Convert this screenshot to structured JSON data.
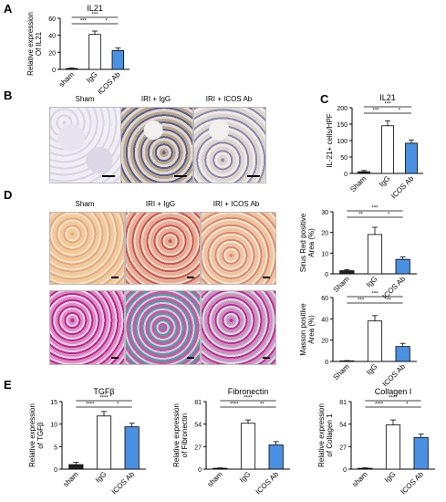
{
  "panels": [
    "A",
    "B",
    "C",
    "D",
    "E"
  ],
  "colors": {
    "ig": "#ffffff",
    "icos": "#4a90e2",
    "sham": "#222222"
  },
  "micrographs": {
    "b": {
      "labels": [
        "Sham",
        "IRI + IgG",
        "IRI + ICOS Ab"
      ]
    },
    "d": {
      "labels": [
        "Sham",
        "IRI + IgG",
        "IRI + ICOS Ab"
      ]
    }
  },
  "chart_data": [
    {
      "id": "a",
      "type": "bar",
      "title": "IL21",
      "categories": [
        "sham",
        "IgG",
        "ICOS Ab"
      ],
      "values": [
        1,
        41,
        22
      ],
      "errors": [
        0.5,
        4,
        3
      ],
      "ylabel": "Relative expression\nOf IL21",
      "ylim": [
        0,
        60
      ],
      "yticks": [
        "0",
        "20",
        "40",
        "60"
      ],
      "sig": [
        "***",
        "***",
        "*"
      ]
    },
    {
      "id": "c",
      "type": "bar",
      "title": "IL21",
      "categories": [
        "Sham",
        "IgG",
        "ICOS Ab"
      ],
      "values": [
        5,
        145,
        92
      ],
      "errors": [
        4,
        15,
        10
      ],
      "ylabel": "IL-21+ cells/HPF",
      "ylim": [
        0,
        200
      ],
      "yticks": [
        "0",
        "50",
        "100",
        "150",
        "200"
      ],
      "sig": [
        "***",
        "***",
        "*"
      ]
    },
    {
      "id": "d1",
      "type": "bar",
      "title": "",
      "categories": [
        "Sham",
        "IgG",
        "ICOS Ab"
      ],
      "values": [
        1.5,
        19,
        7
      ],
      "errors": [
        0.5,
        3.5,
        1.2
      ],
      "ylabel": "Sirus Red positive\nArea (%)",
      "ylim": [
        0,
        30
      ],
      "yticks": [
        "0",
        "10",
        "20",
        "30"
      ],
      "sig": [
        "***",
        "**",
        "*"
      ]
    },
    {
      "id": "d2",
      "type": "bar",
      "title": "",
      "categories": [
        "Sham",
        "IgG",
        "ICOS Ab"
      ],
      "values": [
        0.5,
        38,
        14
      ],
      "errors": [
        0.3,
        5,
        3
      ],
      "ylabel": "Masson positive\nArea (%)",
      "ylim": [
        0,
        60
      ],
      "yticks": [
        "0",
        "20",
        "40",
        "60"
      ],
      "sig": [
        "***",
        "***",
        "**"
      ]
    },
    {
      "id": "e1",
      "type": "bar",
      "title": "TGFβ",
      "categories": [
        "sham",
        "IgG",
        "ICOS Ab"
      ],
      "values": [
        1,
        11.8,
        9.4
      ],
      "errors": [
        0.5,
        1,
        0.8
      ],
      "ylabel": "Relative expression\nof TGFβ",
      "ylim": [
        0,
        15
      ],
      "yticks": [
        "0",
        "5",
        "10",
        "15"
      ],
      "sig": [
        "****",
        "****",
        "*"
      ]
    },
    {
      "id": "e2",
      "type": "bar",
      "title": "Fibronectin",
      "categories": [
        "sham",
        "IgG",
        "ICOS Ab"
      ],
      "values": [
        1,
        55,
        29
      ],
      "errors": [
        0.5,
        4,
        4
      ],
      "ylabel": "Relative expression\nof Fibronectin",
      "ylim": [
        0,
        81
      ],
      "yticks": [
        "0",
        "27",
        "54",
        "81"
      ],
      "sig": [
        "****",
        "****",
        "**"
      ]
    },
    {
      "id": "e3",
      "type": "bar",
      "title": "Collagen I",
      "categories": [
        "sham",
        "IgG",
        "ICOS Ab"
      ],
      "values": [
        1,
        53,
        38
      ],
      "errors": [
        0.5,
        6,
        4
      ],
      "ylabel": "Relative expression\nof Collagen 1",
      "ylim": [
        0,
        81
      ],
      "yticks": [
        "0",
        "27",
        "54",
        "81"
      ],
      "sig": [
        "****",
        "****",
        "*"
      ]
    }
  ]
}
